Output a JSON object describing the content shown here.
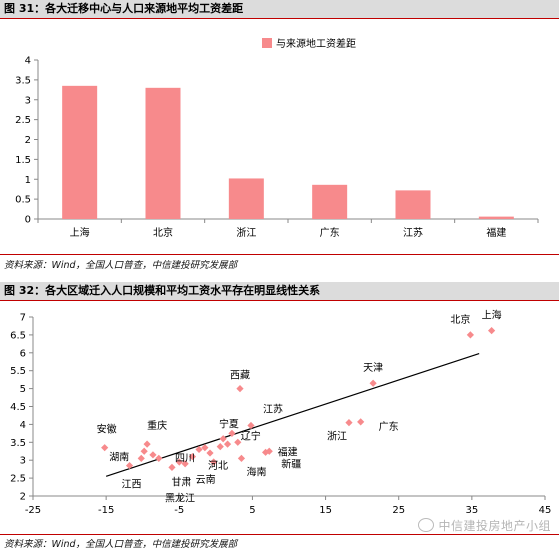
{
  "chart_data": [
    {
      "type": "bar",
      "title": "图 31：各大迁移中心与人口来源地平均工资差距",
      "categories": [
        "上海",
        "北京",
        "浙江",
        "广东",
        "江苏",
        "福建"
      ],
      "series": [
        {
          "name": "与来源地工资差距",
          "values": [
            3.35,
            3.3,
            1.02,
            0.86,
            0.72,
            0.06
          ]
        }
      ],
      "ylim": [
        0,
        4
      ],
      "yticks": [
        "0",
        "0.5",
        "1",
        "1.5",
        "2",
        "2.5",
        "3",
        "3.5",
        "4"
      ],
      "color": "#f78a8c",
      "legend": "top-right",
      "source": "资料来源：Wind，全国人口普查，中信建投研究发展部"
    },
    {
      "type": "scatter",
      "title": "图 32：各大区域迁入人口规模和平均工资水平存在明显线性关系",
      "xlim": [
        -25,
        45
      ],
      "ylim": [
        2,
        7
      ],
      "xticks": [
        "-25",
        "-15",
        "-5",
        "5",
        "15",
        "25",
        "35",
        "45"
      ],
      "yticks": [
        "2",
        "2.5",
        "3",
        "3.5",
        "4",
        "4.5",
        "5",
        "5.5",
        "6",
        "6.5",
        "7"
      ],
      "color": "#f78a8c",
      "trendline": {
        "x": [
          -15,
          36
        ],
        "y": [
          2.55,
          5.98
        ]
      },
      "points": [
        {
          "x": 37.7,
          "y": 6.62
        },
        {
          "x": 34.8,
          "y": 6.5
        },
        {
          "x": 21.5,
          "y": 5.15
        },
        {
          "x": 3.3,
          "y": 5.0
        },
        {
          "x": 19.8,
          "y": 4.07
        },
        {
          "x": 18.2,
          "y": 4.05
        },
        {
          "x": 4.8,
          "y": 3.97
        },
        {
          "x": 2.2,
          "y": 3.75
        },
        {
          "x": 1.0,
          "y": 3.6
        },
        {
          "x": 1.6,
          "y": 3.45
        },
        {
          "x": 3.0,
          "y": 3.5
        },
        {
          "x": 0.6,
          "y": 3.38
        },
        {
          "x": 6.8,
          "y": 3.22
        },
        {
          "x": 7.3,
          "y": 3.25
        },
        {
          "x": -1.5,
          "y": 3.35
        },
        {
          "x": -0.8,
          "y": 3.2
        },
        {
          "x": 3.5,
          "y": 3.05
        },
        {
          "x": -2.3,
          "y": 3.3
        },
        {
          "x": -3.2,
          "y": 3.1
        },
        {
          "x": -9.4,
          "y": 3.45
        },
        {
          "x": -9.8,
          "y": 3.25
        },
        {
          "x": -10.2,
          "y": 3.05
        },
        {
          "x": -8.6,
          "y": 3.15
        },
        {
          "x": -7.8,
          "y": 3.05
        },
        {
          "x": -6.0,
          "y": 2.8
        },
        {
          "x": -5.0,
          "y": 2.95
        },
        {
          "x": -4.2,
          "y": 2.9
        },
        {
          "x": -0.3,
          "y": 2.95
        },
        {
          "x": -11.8,
          "y": 2.85
        },
        {
          "x": -15.2,
          "y": 3.35
        }
      ],
      "labels": [
        {
          "text": "北京",
          "x": 34.8,
          "y": 6.5
        },
        {
          "text": "上海",
          "x": 37.7,
          "y": 6.62
        },
        {
          "text": "天津",
          "x": 21.5,
          "y": 5.15
        },
        {
          "text": "西藏",
          "x": 3.3,
          "y": 5.0
        },
        {
          "text": "江苏",
          "x": 4.8,
          "y": 3.97
        },
        {
          "text": "广东",
          "x": 19.8,
          "y": 4.07
        },
        {
          "text": "浙江",
          "x": 18.2,
          "y": 4.05
        },
        {
          "text": "宁夏",
          "x": 2.2,
          "y": 3.75
        },
        {
          "text": "辽宁",
          "x": 3.0,
          "y": 3.5
        },
        {
          "text": "四川",
          "x": -2.3,
          "y": 3.3
        },
        {
          "text": "河北",
          "x": -0.8,
          "y": 3.2
        },
        {
          "text": "福建",
          "x": 6.8,
          "y": 3.22
        },
        {
          "text": "新疆",
          "x": 7.3,
          "y": 3.25
        },
        {
          "text": "云南",
          "x": -0.3,
          "y": 2.95
        },
        {
          "text": "海南",
          "x": 3.5,
          "y": 3.05
        },
        {
          "text": "甘肃",
          "x": -3.2,
          "y": 3.1
        },
        {
          "text": "重庆",
          "x": -9.4,
          "y": 3.45
        },
        {
          "text": "湖南",
          "x": -10.2,
          "y": 3.05
        },
        {
          "text": "安徽",
          "x": -15.2,
          "y": 3.35
        },
        {
          "text": "江西",
          "x": -11.8,
          "y": 2.85
        },
        {
          "text": "黑龙江",
          "x": -6.0,
          "y": 2.8
        }
      ],
      "source": "资料来源：Wind，全国人口普查，中信建投研究发展部"
    }
  ],
  "watermark": "中信建投房地产小组"
}
